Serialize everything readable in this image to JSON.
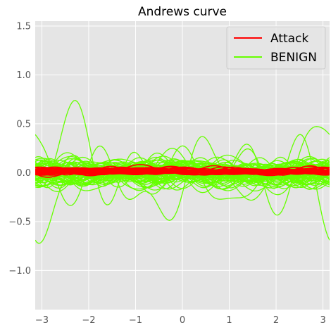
{
  "chart_data": {
    "type": "line",
    "title": "Andrews curve",
    "xlabel": "",
    "ylabel": "",
    "xlim": [
      -3.14159,
      3.14159
    ],
    "ylim": [
      -1.4,
      1.55
    ],
    "x_ticks": [
      -3,
      -2,
      -1,
      0,
      1,
      2,
      3
    ],
    "x_tick_labels": [
      "−3",
      "−2",
      "−1",
      "0",
      "1",
      "2",
      "3"
    ],
    "y_ticks": [
      -1.0,
      -0.5,
      0.0,
      0.5,
      1.0,
      1.5
    ],
    "y_tick_labels": [
      "−1.0",
      "−0.5",
      "0.0",
      "0.5",
      "1.0",
      "1.5"
    ],
    "grid": true,
    "legend_position": "top-right",
    "series": [
      {
        "name": "Attack",
        "color": "#ff0000"
      },
      {
        "name": "BENIGN",
        "color": "#66ff00"
      }
    ]
  }
}
